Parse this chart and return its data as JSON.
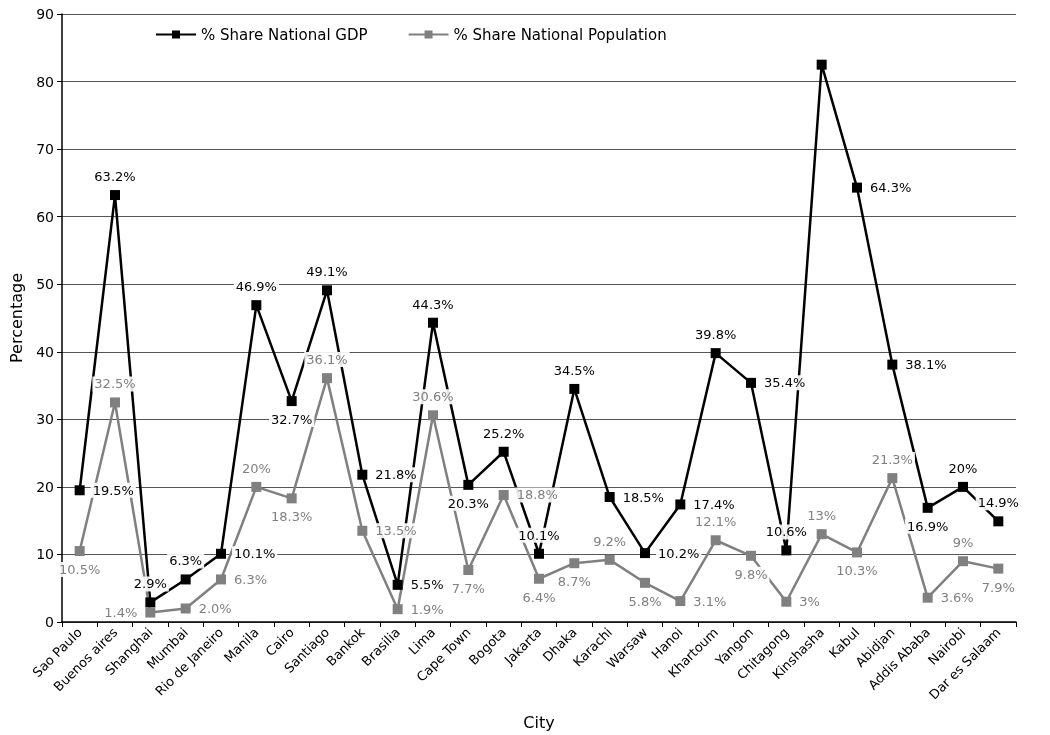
{
  "chart_data": {
    "type": "line",
    "xlabel": "City",
    "ylabel": "Percentage",
    "categories": [
      "Sao Paulo",
      "Buenos aires",
      "Shanghai",
      "Mumbai",
      "Rio de Janeiro",
      "Manila",
      "Cairo",
      "Santiago",
      "Bankok",
      "Brasilia",
      "Lima",
      "Cape Town",
      "Bogota",
      "Jakarta",
      "Dhaka",
      "Karachi",
      "Warsaw",
      "Hanoi",
      "Khartoum",
      "Yangon",
      "Chitagong",
      "Kinshasha",
      "Kabul",
      "Abidjan",
      "Addis Ababa",
      "Nairobi",
      "Dar es Salaam"
    ],
    "series": [
      {
        "name": "% Share National GDP",
        "color": "#000000",
        "values": [
          19.5,
          63.2,
          2.9,
          6.3,
          10.1,
          46.9,
          32.7,
          49.1,
          21.8,
          5.5,
          44.3,
          20.3,
          25.2,
          10.1,
          34.5,
          18.5,
          10.2,
          17.4,
          39.8,
          35.4,
          10.6,
          82.5,
          64.3,
          38.1,
          16.9,
          20,
          14.9
        ],
        "value_labels": [
          "19.5%",
          "63.2%",
          "2.9%",
          "6.3%",
          "10.1%",
          "46.9%",
          "32.7%",
          "49.1%",
          "21.8%",
          "5.5%",
          "44.3%",
          "20.3%",
          "25.2%",
          "10.1%",
          "34.5%",
          "18.5%",
          "10.2%",
          "17.4%",
          "39.8%",
          "35.4%",
          "10.6%",
          null,
          "64.3%",
          "38.1%",
          "16.9%",
          "20%",
          "14.9%"
        ]
      },
      {
        "name": "% Share National Population",
        "color": "#808080",
        "values": [
          10.5,
          32.5,
          1.4,
          2.0,
          6.3,
          20,
          18.3,
          36.1,
          13.5,
          1.9,
          30.6,
          7.7,
          18.8,
          6.4,
          8.7,
          9.2,
          5.8,
          3.1,
          12.1,
          9.8,
          3,
          13,
          10.3,
          21.3,
          3.6,
          9,
          7.9
        ],
        "value_labels": [
          "10.5%",
          "32.5%",
          "1.4%",
          "2.0%",
          "6.3%",
          "20%",
          "18.3%",
          "36.1%",
          "13.5%",
          "1.9%",
          "30.6%",
          "7.7%",
          "18.8%",
          "6.4%",
          "8.7%",
          "9.2%",
          "5.8%",
          "3.1%",
          "12.1%",
          "9.8%",
          "3%",
          "13%",
          "10.3%",
          "21.3%",
          "3.6%",
          "9%",
          "7.9%"
        ]
      }
    ],
    "ylim": [
      0,
      90
    ],
    "yticks": [
      0,
      10,
      20,
      30,
      40,
      50,
      60,
      70,
      80,
      90
    ],
    "grid": "y",
    "legend": "top left",
    "marker": "square",
    "line_style": "solid"
  }
}
